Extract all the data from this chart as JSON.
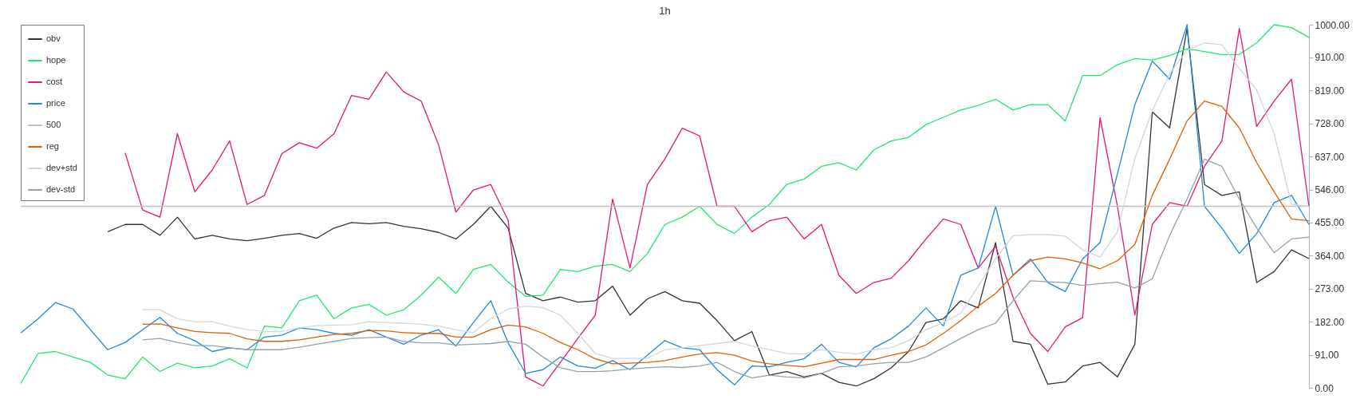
{
  "chart_data": {
    "type": "line",
    "title": "1h",
    "categories": [
      null,
      null,
      null,
      null,
      null,
      null,
      null,
      null,
      null,
      null,
      null,
      null,
      null,
      null,
      null,
      null,
      null,
      null,
      null,
      null,
      null,
      null,
      null,
      null,
      null,
      null,
      null,
      null,
      null,
      null,
      null,
      null,
      null,
      null,
      null,
      null,
      null,
      null,
      null,
      null,
      null,
      null,
      null,
      null,
      null,
      null,
      null,
      null,
      null,
      null,
      null,
      null,
      null,
      null,
      null,
      null,
      null,
      null,
      null,
      null,
      null,
      null,
      null,
      null,
      null,
      null,
      null,
      null,
      null,
      null,
      null,
      null,
      null,
      null,
      null
    ],
    "series": [
      {
        "name": "obv",
        "color": "#333333",
        "values": [
          null,
          null,
          null,
          null,
          null,
          430,
          450,
          450,
          420,
          470,
          410,
          420,
          410,
          405,
          412,
          420,
          425,
          412,
          440,
          455,
          452,
          455,
          445,
          438,
          428,
          410,
          450,
          500,
          440,
          260,
          240,
          250,
          236,
          240,
          280,
          200,
          245,
          265,
          240,
          233,
          185,
          130,
          155,
          35,
          45,
          30,
          40,
          15,
          5,
          25,
          55,
          100,
          180,
          190,
          240,
          220,
          400,
          128,
          120,
          10,
          16,
          60,
          70,
          30,
          120,
          760,
          716,
          990,
          560,
          530,
          540,
          290,
          320,
          380,
          356
        ]
      },
      {
        "name": "hope",
        "color": "#1de96b",
        "values": [
          12,
          95,
          100,
          85,
          70,
          35,
          25,
          85,
          45,
          68,
          55,
          60,
          80,
          55,
          170,
          165,
          240,
          255,
          190,
          220,
          230,
          200,
          215,
          255,
          305,
          260,
          326,
          340,
          291,
          252,
          255,
          326,
          320,
          335,
          340,
          320,
          370,
          450,
          470,
          500,
          450,
          425,
          470,
          505,
          560,
          575,
          610,
          620,
          600,
          655,
          680,
          690,
          725,
          745,
          765,
          778,
          795,
          765,
          780,
          780,
          735,
          860,
          860,
          890,
          907,
          903,
          915,
          934,
          926,
          918,
          918,
          950,
          1000,
          992,
          965
        ]
      },
      {
        "name": "cost",
        "color": "#e5157a",
        "values": [
          null,
          null,
          null,
          null,
          null,
          null,
          647,
          490,
          470,
          700,
          540,
          600,
          680,
          505,
          530,
          645,
          675,
          660,
          700,
          805,
          795,
          870,
          815,
          790,
          670,
          484,
          545,
          560,
          461,
          30,
          5,
          70,
          136,
          200,
          520,
          330,
          560,
          630,
          715,
          694,
          500,
          500,
          430,
          460,
          470,
          410,
          450,
          310,
          260,
          290,
          302,
          350,
          410,
          465,
          450,
          330,
          390,
          250,
          150,
          100,
          168,
          193,
          744,
          500,
          200,
          450,
          510,
          500,
          610,
          680,
          990,
          720,
          790,
          850,
          500
        ]
      },
      {
        "name": "price",
        "color": "#1e88e5",
        "values": [
          151,
          190,
          235,
          217,
          160,
          105,
          125,
          160,
          194,
          150,
          130,
          100,
          110,
          105,
          140,
          145,
          165,
          160,
          150,
          145,
          160,
          140,
          120,
          145,
          160,
          115,
          180,
          240,
          124,
          40,
          50,
          85,
          60,
          54,
          75,
          50,
          90,
          130,
          110,
          105,
          50,
          8,
          60,
          58,
          70,
          80,
          120,
          70,
          58,
          110,
          135,
          170,
          220,
          170,
          310,
          330,
          500,
          310,
          355,
          290,
          265,
          355,
          400,
          590,
          780,
          900,
          850,
          1000,
          500,
          440,
          370,
          425,
          510,
          530,
          450
        ]
      },
      {
        "name": "500",
        "color": "#c0c0c0",
        "values": [
          500,
          500,
          500,
          500,
          500,
          500,
          500,
          500,
          500,
          500,
          500,
          500,
          500,
          500,
          500,
          500,
          500,
          500,
          500,
          500,
          500,
          500,
          500,
          500,
          500,
          500,
          500,
          500,
          500,
          500,
          500,
          500,
          500,
          500,
          500,
          500,
          500,
          500,
          500,
          500,
          500,
          500,
          500,
          500,
          500,
          500,
          500,
          500,
          500,
          500,
          500,
          500,
          500,
          500,
          500,
          500,
          500,
          500,
          500,
          500,
          500,
          500,
          500,
          500,
          500,
          500,
          500,
          500,
          500,
          500,
          500,
          500,
          500,
          500,
          500
        ]
      },
      {
        "name": "reg",
        "color": "#e35f00",
        "values": [
          null,
          null,
          null,
          null,
          null,
          null,
          null,
          175,
          176,
          165,
          155,
          152,
          150,
          135,
          128,
          128,
          132,
          140,
          147,
          150,
          158,
          157,
          152,
          150,
          150,
          140,
          140,
          160,
          173,
          168,
          150,
          125,
          105,
          80,
          66,
          68,
          70,
          75,
          85,
          93,
          97,
          90,
          74,
          66,
          62,
          58,
          68,
          78,
          78,
          78,
          90,
          100,
          118,
          150,
          185,
          225,
          260,
          310,
          350,
          360,
          355,
          344,
          328,
          350,
          395,
          530,
          630,
          735,
          790,
          775,
          716,
          620,
          540,
          465,
          460
        ]
      },
      {
        "name": "dev+std",
        "color": "#cfd8dc",
        "values": [
          null,
          null,
          null,
          null,
          null,
          null,
          null,
          215,
          215,
          190,
          182,
          182,
          170,
          160,
          155,
          155,
          165,
          171,
          173,
          174,
          182,
          180,
          178,
          175,
          170,
          160,
          152,
          190,
          217,
          225,
          221,
          200,
          150,
          95,
          81,
          81,
          81,
          105,
          110,
          116,
          122,
          128,
          115,
          105,
          95,
          93,
          105,
          98,
          93,
          105,
          110,
          130,
          160,
          180,
          205,
          280,
          355,
          419,
          422,
          422,
          418,
          380,
          360,
          430,
          632,
          763,
          865,
          930,
          950,
          945,
          880,
          820,
          700,
          505,
          500
        ]
      },
      {
        "name": "dev-std",
        "color": "#90a4ae",
        "values": [
          null,
          null,
          null,
          null,
          null,
          null,
          null,
          132,
          136,
          125,
          116,
          116,
          110,
          105,
          105,
          105,
          112,
          120,
          128,
          136,
          138,
          140,
          128,
          124,
          124,
          118,
          120,
          122,
          128,
          120,
          85,
          55,
          45,
          45,
          47,
          52,
          55,
          58,
          56,
          60,
          70,
          45,
          27,
          35,
          30,
          27,
          40,
          58,
          60,
          66,
          70,
          70,
          85,
          110,
          136,
          160,
          178,
          240,
          295,
          292,
          290,
          282,
          287,
          291,
          275,
          300,
          420,
          520,
          630,
          610,
          520,
          440,
          372,
          410,
          415
        ]
      }
    ],
    "ylim": [
      0,
      1000
    ],
    "yticks": [
      {
        "value": 0,
        "label": "0.00"
      },
      {
        "value": 91,
        "label": "91.00"
      },
      {
        "value": 182,
        "label": "182.00"
      },
      {
        "value": 273,
        "label": "273.00"
      },
      {
        "value": 364,
        "label": "364.00"
      },
      {
        "value": 455,
        "label": "455.00"
      },
      {
        "value": 546,
        "label": "546.00"
      },
      {
        "value": 637,
        "label": "637.00"
      },
      {
        "value": 728,
        "label": "728.00"
      },
      {
        "value": 819,
        "label": "819.00"
      },
      {
        "value": 910,
        "label": "910.00"
      },
      {
        "value": 1000,
        "label": "1000.00"
      }
    ],
    "tick_labels": "y",
    "grid": false,
    "legend": "top left",
    "marker": "none",
    "line_style": "solid"
  }
}
